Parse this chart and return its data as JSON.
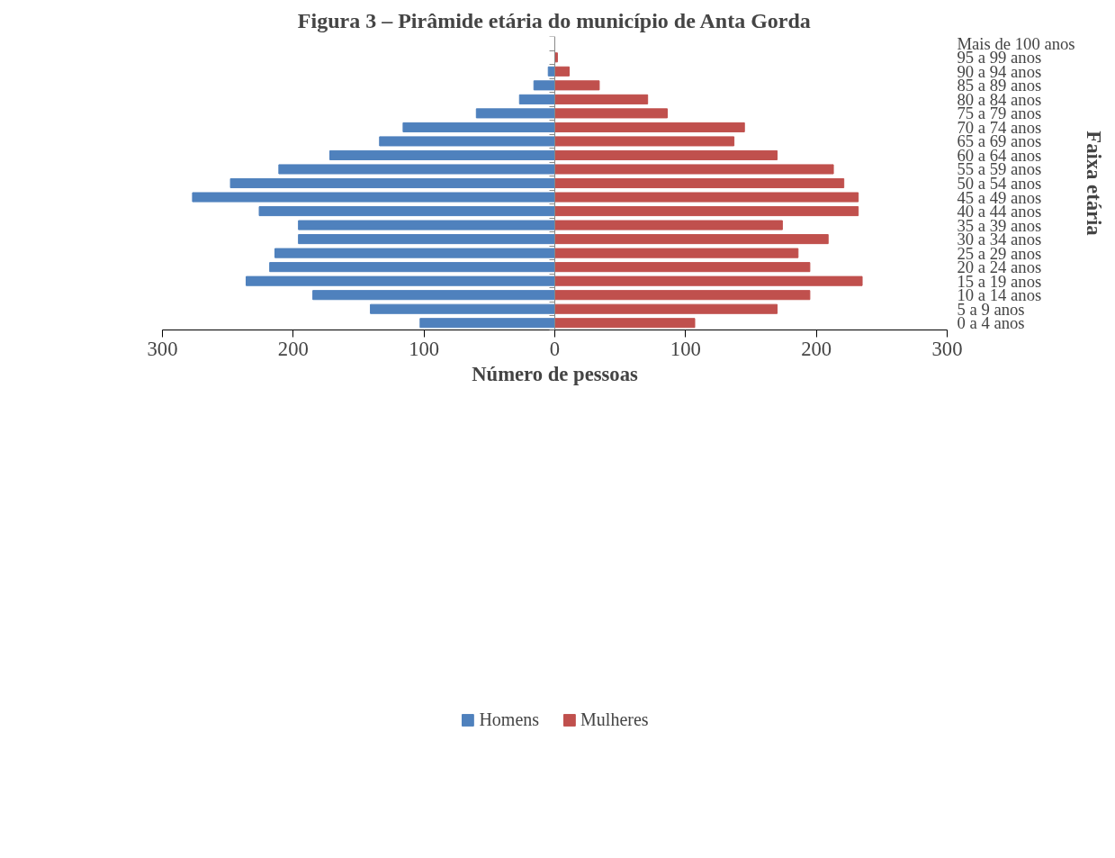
{
  "chart_data": {
    "type": "bar",
    "orientation": "horizontal",
    "title": "Figura 3 – Pirâmide etária do município de Anta Gorda",
    "xlabel": "Número de pessoas",
    "ylabel": "Faixa etária",
    "categories": [
      "Mais de 100 anos",
      "95 a 99 anos",
      "90 a 94 anos",
      "85 a 89 anos",
      "80 a 84 anos",
      "75 a 79 anos",
      "70 a 74 anos",
      "65 a 69 anos",
      "60 a 64 anos",
      "55 a 59 anos",
      "50 a 54 anos",
      "45 a 49 anos",
      "40 a 44 anos",
      "35 a 39 anos",
      "30 a 34 anos",
      "25 a 29 anos",
      "20 a 24 anos",
      "15 a 19 anos",
      "10 a 14 anos",
      "5 a 9 anos",
      "0 a 4 anos"
    ],
    "series": [
      {
        "name": "Homens",
        "color": "#4f81bd",
        "values": [
          0,
          0,
          -5,
          -16,
          -27,
          -60,
          -116,
          -134,
          -172,
          -211,
          -248,
          -277,
          -226,
          -196,
          -196,
          -214,
          -218,
          -236,
          -185,
          -141,
          -103
        ]
      },
      {
        "name": "Mulheres",
        "color": "#c0504d",
        "values": [
          0,
          2,
          11,
          34,
          71,
          86,
          145,
          137,
          170,
          213,
          221,
          232,
          232,
          174,
          209,
          186,
          195,
          235,
          195,
          170,
          107
        ]
      }
    ],
    "xlim": [
      -300,
      300
    ],
    "xticks": [
      {
        "value": -300,
        "label": "300"
      },
      {
        "value": -200,
        "label": "200"
      },
      {
        "value": -100,
        "label": "100"
      },
      0,
      100,
      200,
      300
    ],
    "stacked": true,
    "legend": "bottom"
  }
}
